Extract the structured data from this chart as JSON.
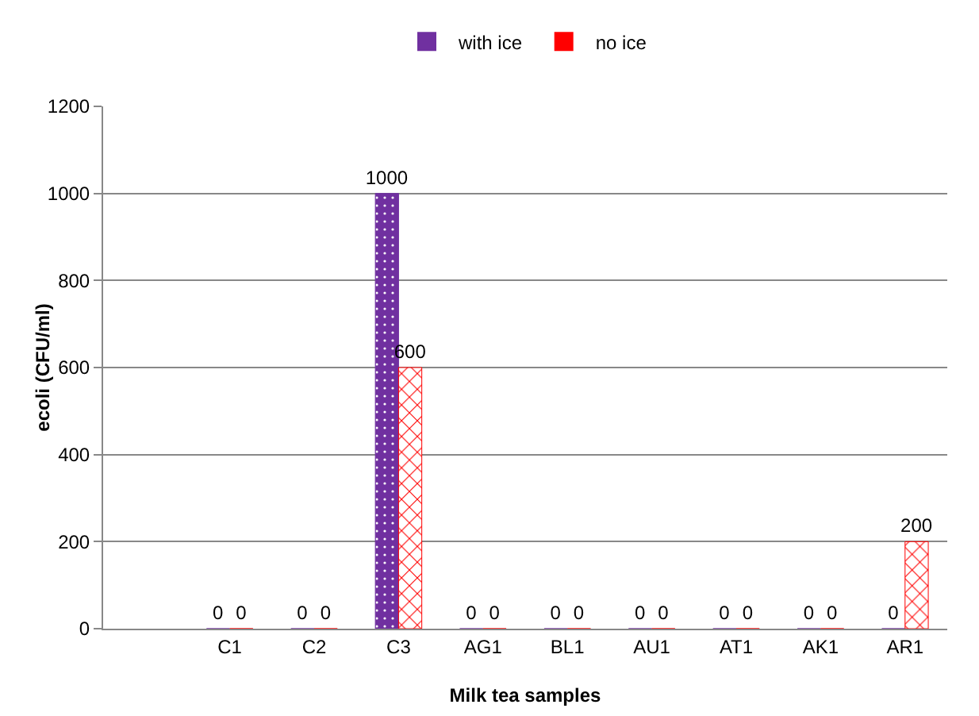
{
  "chart_data": {
    "type": "bar",
    "xlabel": "Milk tea samples",
    "ylabel": "ecoli (CFU/ml)",
    "categories": [
      null,
      "C1",
      "C2",
      "C3",
      "AG1",
      "BL1",
      "AU1",
      "AT1",
      "AK1",
      "AR1"
    ],
    "series": [
      {
        "name": "with ice",
        "color": "#7030a0",
        "values": [
          null,
          0,
          0,
          1000,
          0,
          0,
          0,
          0,
          0,
          0
        ]
      },
      {
        "name": "no ice",
        "color": "#ff0000",
        "values": [
          null,
          0,
          0,
          600,
          0,
          0,
          0,
          0,
          0,
          200
        ]
      }
    ],
    "ylim": [
      0,
      1200
    ],
    "yticks": [
      0,
      200,
      400,
      600,
      800,
      1000,
      1200
    ],
    "grid": "y",
    "legend": "top",
    "data_labels": true
  }
}
